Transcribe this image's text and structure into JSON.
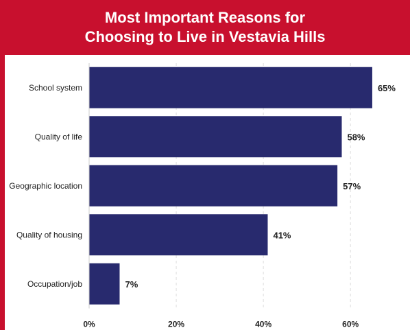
{
  "chart_data": {
    "type": "bar",
    "orientation": "horizontal",
    "title_lines": [
      "Most Important Reasons for",
      "Choosing to Live in Vestavia Hills"
    ],
    "categories": [
      "School system",
      "Quality of life",
      "Geographic location",
      "Quality of housing",
      "Occupation/job"
    ],
    "values": [
      65,
      58,
      57,
      41,
      7
    ],
    "value_labels": [
      "65%",
      "58%",
      "57%",
      "41%",
      "7%"
    ],
    "x_ticks": [
      0,
      20,
      40,
      60
    ],
    "x_tick_labels": [
      "0%",
      "20%",
      "40%",
      "60%"
    ],
    "xlim": [
      0,
      68
    ],
    "grid": "vertical dashed",
    "xlabel": "",
    "ylabel": ""
  },
  "colors": {
    "header": "#c8102e",
    "bar": "#282a6e",
    "grid": "#dcdcdc",
    "text": "#222222"
  }
}
